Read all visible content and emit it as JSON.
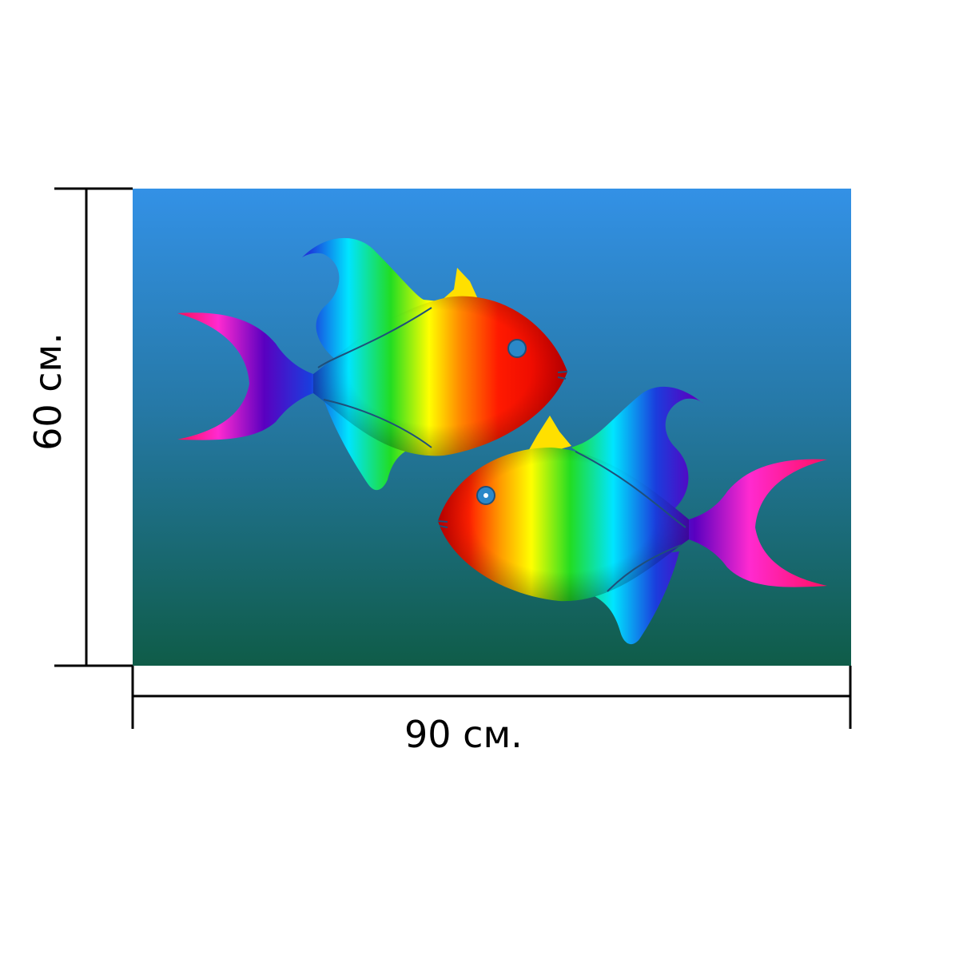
{
  "dimensions": {
    "width_label": "90 см.",
    "height_label": "60 см."
  },
  "artwork": {
    "subject": "two-rainbow-fish",
    "background_top": "#3391E6",
    "background_bottom": "#0F5C48",
    "fish_colors": [
      "#FF0000",
      "#FF8A00",
      "#FFFF00",
      "#22DD22",
      "#00E5FF",
      "#1A3DDD",
      "#7A00C8",
      "#FF2AD0"
    ]
  }
}
